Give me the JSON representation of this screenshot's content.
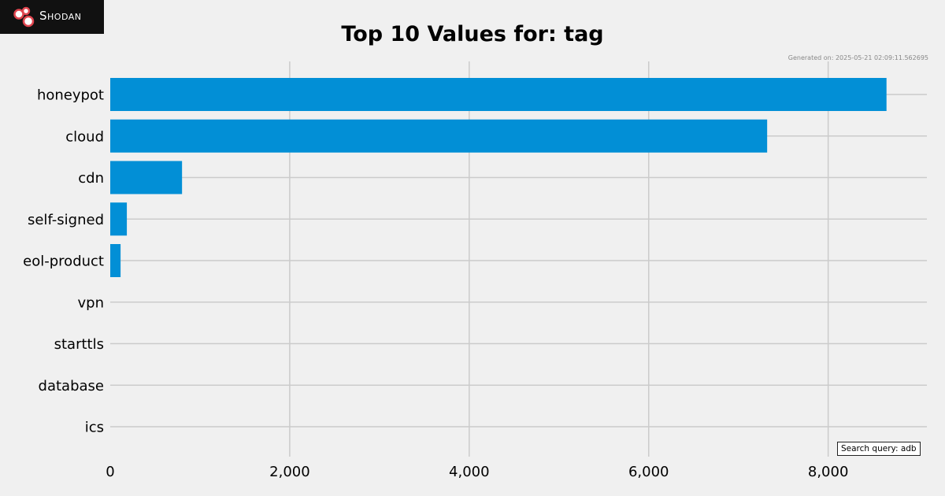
{
  "logo": {
    "text": "Shodan",
    "icon": "shodan-logo-icon",
    "accent": "#e0454f"
  },
  "generated_text": "Generated on: 2025-05-21 02:09:11.562695",
  "search_query_text": "Search query: adb",
  "chart_data": {
    "type": "bar",
    "orientation": "horizontal",
    "title": "Top 10 Values for: tag",
    "xlabel": "",
    "ylabel": "",
    "categories": [
      "honeypot",
      "cloud",
      "cdn",
      "self-signed",
      "eol-product",
      "vpn",
      "starttls",
      "database",
      "ics"
    ],
    "values": [
      8650,
      7320,
      800,
      185,
      115,
      0,
      0,
      0,
      0
    ],
    "xlim": [
      0,
      9100
    ],
    "xticks": [
      0,
      2000,
      4000,
      6000,
      8000
    ],
    "xtick_labels": [
      "0",
      "2,000",
      "4,000",
      "6,000",
      "8,000"
    ],
    "grid": true,
    "bar_color": "#028fd6",
    "grid_color": "#cbcbcb",
    "background": "#f0f0f0"
  }
}
